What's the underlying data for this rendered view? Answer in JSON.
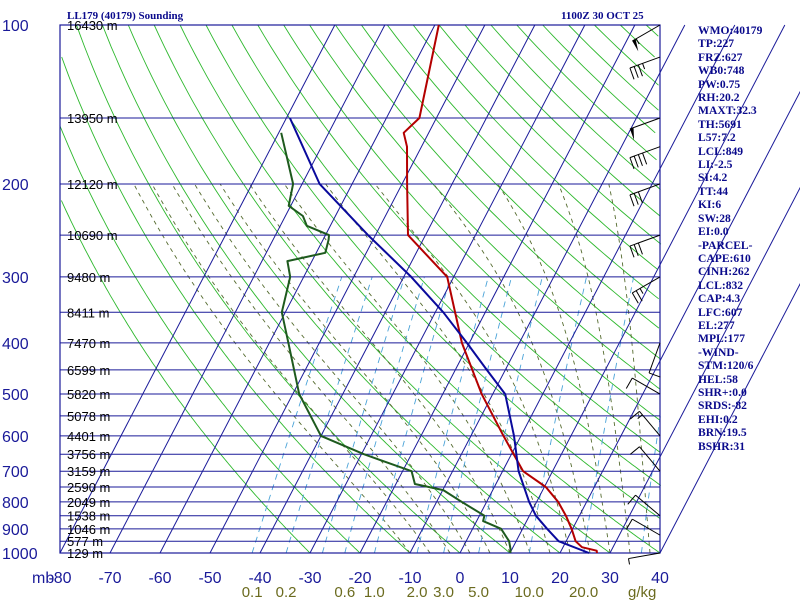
{
  "header": {
    "title": "LL179 (40179) Sounding",
    "time": "1100Z 30 OCT 25"
  },
  "stats": [
    "WMO:40179",
    "TP:227",
    "FRZ:627",
    "WB0:748",
    "PW:0.75",
    "RH:20.2",
    "MAXT:32.3",
    "TH:5691",
    "L57:7.2",
    "LCL:849",
    "LI:-2.5",
    "SI:4.2",
    "TT:44",
    "KI:6",
    "SW:28",
    "EI:0.0",
    "-PARCEL-",
    "CAPE:610",
    "CINH:262",
    "LCL:832",
    "CAP:4.3",
    "LFC:607",
    "EL:277",
    "MPL:177",
    "-WIND-",
    "STM:120/6",
    "HEL:58",
    "SHR+:0.0",
    "SRDS:-82",
    "EHI:0.2",
    "BRN:19.5",
    "BSHR:31"
  ],
  "colors": {
    "grid": "#1a1a99",
    "temp": "#b40000",
    "dewpoint": "#1e5a1e",
    "parcel": "#0a0a9c",
    "dry_adiabat": "#2eb82e",
    "moist_adiabat": "#556b2f",
    "mixing_ratio": "#4aa3d8",
    "text": "#0a0a8c",
    "mixing_label": "#6b6b1f"
  },
  "chart_data": {
    "type": "line",
    "diagram": "skew-T log-P",
    "pressure_label": "mb",
    "pressure_ticks": [
      "100",
      "200",
      "300",
      "400",
      "500",
      "600",
      "700",
      "800",
      "900",
      "1000"
    ],
    "temperature_ticks": [
      "-80",
      "-70",
      "-60",
      "-50",
      "-40",
      "-30",
      "-20",
      "-10",
      "0",
      "10",
      "20",
      "30",
      "40"
    ],
    "temperature_range": [
      -80,
      40
    ],
    "pressure_range": [
      100,
      1000
    ],
    "mixing_ratio_unit": "g/kg",
    "mixing_ratio_labels": [
      "0.1",
      "0.2",
      "0.6",
      "1.0",
      "2.0",
      "3.0",
      "5.0",
      "10.0",
      "20.0"
    ],
    "height_labels": [
      {
        "p": 100,
        "text": "16430 m"
      },
      {
        "p": 150,
        "text": "13950 m"
      },
      {
        "p": 200,
        "text": "12120 m"
      },
      {
        "p": 250,
        "text": "10690 m"
      },
      {
        "p": 300,
        "text": "9480 m"
      },
      {
        "p": 350,
        "text": "8411 m"
      },
      {
        "p": 400,
        "text": "7470 m"
      },
      {
        "p": 450,
        "text": "6599 m"
      },
      {
        "p": 500,
        "text": "5820 m"
      },
      {
        "p": 550,
        "text": "5078 m"
      },
      {
        "p": 600,
        "text": "4401 m"
      },
      {
        "p": 650,
        "text": "3756 m"
      },
      {
        "p": 700,
        "text": "3159 m"
      },
      {
        "p": 750,
        "text": "2590 m"
      },
      {
        "p": 800,
        "text": "2049 m"
      },
      {
        "p": 850,
        "text": "1538 m"
      },
      {
        "p": 900,
        "text": "1046 m"
      },
      {
        "p": 950,
        "text": "577 m"
      },
      {
        "p": 1000,
        "text": "129 m"
      }
    ],
    "series": [
      {
        "key": "temperature",
        "points": [
          [
            100,
            -59.2
          ],
          [
            150,
            -53.4
          ],
          [
            160,
            -55.0
          ],
          [
            170,
            -52.9
          ],
          [
            200,
            -49.0
          ],
          [
            250,
            -43.5
          ],
          [
            300,
            -31.3
          ],
          [
            400,
            -21.5
          ],
          [
            500,
            -12.2
          ],
          [
            600,
            -3.5
          ],
          [
            700,
            4.1
          ],
          [
            750,
            10.3
          ],
          [
            800,
            14.3
          ],
          [
            850,
            17.3
          ],
          [
            900,
            19.8
          ],
          [
            950,
            21.9
          ],
          [
            975,
            23.8
          ],
          [
            990,
            27.1
          ],
          [
            1000,
            27.4
          ]
        ]
      },
      {
        "key": "dewpoint",
        "points": [
          [
            160,
            -79.5
          ],
          [
            200,
            -71.8
          ],
          [
            220,
            -70.4
          ],
          [
            230,
            -66.5
          ],
          [
            240,
            -64.7
          ],
          [
            250,
            -59.3
          ],
          [
            255,
            -58.9
          ],
          [
            270,
            -58.2
          ],
          [
            280,
            -64.9
          ],
          [
            300,
            -62.7
          ],
          [
            350,
            -60.7
          ],
          [
            400,
            -56.2
          ],
          [
            500,
            -48.7
          ],
          [
            600,
            -40.0
          ],
          [
            650,
            -29.5
          ],
          [
            700,
            -18.2
          ],
          [
            740,
            -16.2
          ],
          [
            760,
            -9.9
          ],
          [
            800,
            -5.0
          ],
          [
            850,
            1.0
          ],
          [
            870,
            1.3
          ],
          [
            900,
            5.7
          ],
          [
            950,
            8.6
          ],
          [
            980,
            9.6
          ],
          [
            1000,
            10.1
          ]
        ]
      },
      {
        "key": "parcel",
        "points": [
          [
            150,
            -79.3
          ],
          [
            200,
            -66.5
          ],
          [
            250,
            -51.5
          ],
          [
            300,
            -38.5
          ],
          [
            350,
            -28.4
          ],
          [
            400,
            -20.5
          ],
          [
            450,
            -13.7
          ],
          [
            500,
            -7.5
          ],
          [
            600,
            -1.4
          ],
          [
            700,
            3.2
          ],
          [
            800,
            8.5
          ],
          [
            850,
            11.3
          ],
          [
            900,
            14.9
          ],
          [
            950,
            18.5
          ],
          [
            1000,
            25.8
          ]
        ]
      }
    ],
    "winds": [
      {
        "p": 1000,
        "dir": 260,
        "spd": 5
      },
      {
        "p": 925,
        "dir": 300,
        "spd": 10
      },
      {
        "p": 850,
        "dir": 310,
        "spd": 10
      },
      {
        "p": 700,
        "dir": 320,
        "spd": 10
      },
      {
        "p": 600,
        "dir": 320,
        "spd": 15
      },
      {
        "p": 500,
        "dir": 300,
        "spd": 10
      },
      {
        "p": 400,
        "dir": 200,
        "spd": 10
      },
      {
        "p": 300,
        "dir": 240,
        "spd": 25
      },
      {
        "p": 250,
        "dir": 250,
        "spd": 30
      },
      {
        "p": 200,
        "dir": 250,
        "spd": 30
      },
      {
        "p": 170,
        "dir": 250,
        "spd": 40
      },
      {
        "p": 150,
        "dir": 250,
        "spd": 50
      },
      {
        "p": 115,
        "dir": 250,
        "spd": 35
      },
      {
        "p": 100,
        "dir": 240,
        "spd": 55
      }
    ]
  }
}
